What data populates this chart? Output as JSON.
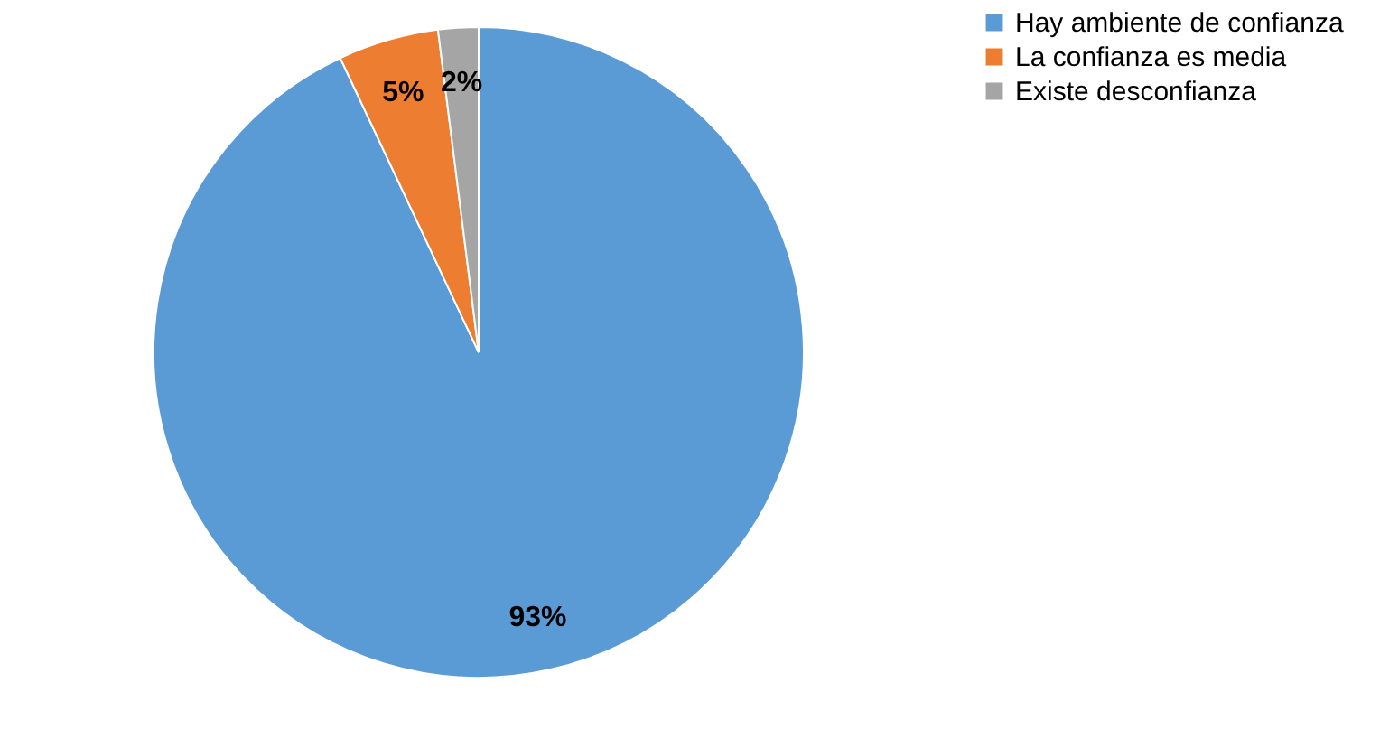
{
  "chart_data": {
    "type": "pie",
    "categories": [
      "Hay ambiente de confianza",
      "La confianza es media",
      "Existe desconfianza"
    ],
    "values": [
      93,
      5,
      2
    ],
    "colors": [
      "#5b9bd5",
      "#ed7d31",
      "#a5a5a5"
    ],
    "value_labels": [
      "93%",
      "5%",
      "2%"
    ],
    "legend": "right"
  }
}
